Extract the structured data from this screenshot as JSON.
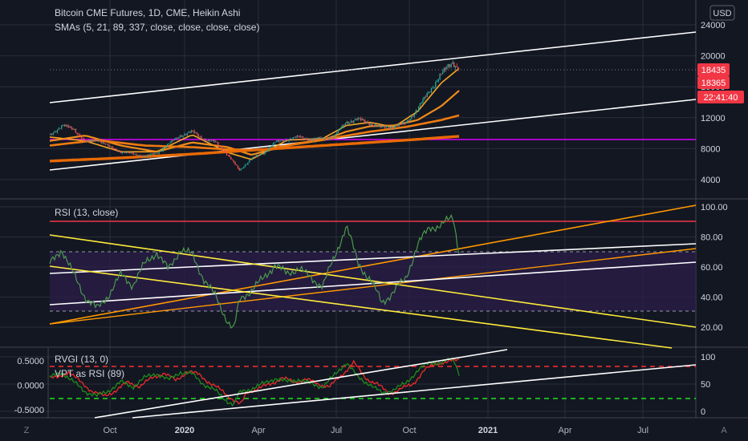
{
  "colors": {
    "background": "#131722",
    "grid": "#2a2e39",
    "divider": "#434651",
    "candle_up": "#26a69a",
    "candle_down": "#ef5350",
    "sma5": "#f5a623",
    "sma21": "#f08c1a",
    "sma89": "#ef7a10",
    "sma337": "#e86a05",
    "magenta_line": "#d500f9",
    "trend_white": "#ffffff",
    "rsi_line": "#4c9a4c",
    "rsi_band_fill": "#2b1d4a",
    "overbought_red": "#f23645",
    "trend_orange": "#ff9800",
    "trend_yellow": "#ffeb3b",
    "rvgi_red": "#ef2a2a",
    "rvgi_green": "#1c8c1c",
    "dashed_red": "#ff2e2e",
    "dashed_green": "#22e222",
    "price_tag_red": "#f23645"
  },
  "header": {
    "title": "Bitcoin CME Futures, 1D, CME, Heikin Ashi",
    "indicator": "SMAs (5, 21, 89, 337, close, close, close, close)",
    "currency_button": "USD"
  },
  "price_tags": {
    "last": "18435",
    "sma": "18365",
    "countdown": "22:41:40"
  },
  "panes": {
    "rsi": {
      "label": "RSI (13, close)"
    },
    "rvgi": {
      "label": "RVGI (13, 0)",
      "label2": "VPT as RSI (89)"
    }
  },
  "footer": {
    "left_icon": "Z",
    "right_icon": "A"
  },
  "chart_data": [
    {
      "type": "candlestick",
      "title": "Bitcoin CME Futures, 1D, CME, Heikin Ashi",
      "series_note": "SMAs (5, 21, 89, 337, close, close, close, close)",
      "x_ticks": [
        "Oct",
        "2020",
        "Apr",
        "Jul",
        "Oct",
        "2021",
        "Apr",
        "Jul"
      ],
      "y_ticks": [
        "24000",
        "20000",
        "16000",
        "12000",
        "8000",
        "4000"
      ],
      "ylim": [
        2000,
        25000
      ],
      "price_path": [
        [
          0,
          9800
        ],
        [
          2,
          11000
        ],
        [
          4,
          10500
        ],
        [
          6,
          8800
        ],
        [
          8,
          9200
        ],
        [
          10,
          8200
        ],
        [
          12,
          7600
        ],
        [
          14,
          7300
        ],
        [
          16,
          7000
        ],
        [
          18,
          7400
        ],
        [
          20,
          8600
        ],
        [
          22,
          9700
        ],
        [
          24,
          10200
        ],
        [
          26,
          9200
        ],
        [
          28,
          8800
        ],
        [
          30,
          7200
        ],
        [
          32,
          5200
        ],
        [
          34,
          6700
        ],
        [
          36,
          7400
        ],
        [
          38,
          8800
        ],
        [
          40,
          9200
        ],
        [
          42,
          9500
        ],
        [
          44,
          9200
        ],
        [
          46,
          9300
        ],
        [
          48,
          9600
        ],
        [
          50,
          11400
        ],
        [
          52,
          11800
        ],
        [
          54,
          11300
        ],
        [
          56,
          10700
        ],
        [
          58,
          10900
        ],
        [
          60,
          11200
        ],
        [
          62,
          13000
        ],
        [
          64,
          15300
        ],
        [
          66,
          17500
        ],
        [
          68,
          19200
        ],
        [
          69,
          18435
        ]
      ],
      "sma_paths": [
        {
          "name": "5",
          "points": [
            [
              0,
              9500
            ],
            [
              6,
              9000
            ],
            [
              12,
              7600
            ],
            [
              18,
              7600
            ],
            [
              24,
              9800
            ],
            [
              30,
              7500
            ],
            [
              34,
              6600
            ],
            [
              40,
              9100
            ],
            [
              46,
              9300
            ],
            [
              50,
              11000
            ],
            [
              54,
              11400
            ],
            [
              58,
              10800
            ],
            [
              62,
              12800
            ],
            [
              66,
              16500
            ],
            [
              69,
              18365
            ]
          ]
        },
        {
          "name": "21",
          "points": [
            [
              0,
              9000
            ],
            [
              6,
              9700
            ],
            [
              12,
              8400
            ],
            [
              18,
              7600
            ],
            [
              24,
              8800
            ],
            [
              30,
              8200
            ],
            [
              34,
              7200
            ],
            [
              40,
              8400
            ],
            [
              46,
              9100
            ],
            [
              50,
              10200
            ],
            [
              54,
              10900
            ],
            [
              58,
              11000
            ],
            [
              62,
              11700
            ],
            [
              66,
              13500
            ],
            [
              69,
              15500
            ]
          ]
        },
        {
          "name": "89",
          "points": [
            [
              0,
              8400
            ],
            [
              8,
              9100
            ],
            [
              16,
              8400
            ],
            [
              24,
              8200
            ],
            [
              30,
              7900
            ],
            [
              36,
              7800
            ],
            [
              42,
              8700
            ],
            [
              48,
              9400
            ],
            [
              54,
              10200
            ],
            [
              60,
              10800
            ],
            [
              66,
              11700
            ],
            [
              69,
              12300
            ]
          ]
        },
        {
          "name": "337",
          "points": [
            [
              0,
              6400
            ],
            [
              12,
              6800
            ],
            [
              24,
              7300
            ],
            [
              36,
              7900
            ],
            [
              48,
              8500
            ],
            [
              60,
              9100
            ],
            [
              69,
              9600
            ]
          ]
        }
      ]
    },
    {
      "type": "line",
      "title": "RSI (13, close)",
      "y_ticks": [
        "100.00",
        "80.00",
        "60.00",
        "40.00",
        "20.00"
      ],
      "ylim": [
        10,
        105
      ],
      "levels": {
        "overbought_red": 90,
        "upper_dashed": 70,
        "lower_dashed": 30
      },
      "rsi_path": [
        [
          0,
          62
        ],
        [
          2,
          72
        ],
        [
          4,
          55
        ],
        [
          6,
          40
        ],
        [
          8,
          32
        ],
        [
          10,
          42
        ],
        [
          12,
          55
        ],
        [
          14,
          48
        ],
        [
          16,
          62
        ],
        [
          18,
          70
        ],
        [
          20,
          58
        ],
        [
          22,
          72
        ],
        [
          24,
          68
        ],
        [
          26,
          52
        ],
        [
          28,
          40
        ],
        [
          30,
          24
        ],
        [
          31,
          18
        ],
        [
          32,
          38
        ],
        [
          34,
          45
        ],
        [
          36,
          52
        ],
        [
          38,
          62
        ],
        [
          40,
          55
        ],
        [
          42,
          60
        ],
        [
          44,
          52
        ],
        [
          46,
          48
        ],
        [
          48,
          66
        ],
        [
          50,
          88
        ],
        [
          52,
          62
        ],
        [
          54,
          52
        ],
        [
          56,
          36
        ],
        [
          58,
          44
        ],
        [
          60,
          52
        ],
        [
          62,
          75
        ],
        [
          64,
          86
        ],
        [
          66,
          88
        ],
        [
          68,
          93
        ],
        [
          69,
          70
        ]
      ]
    },
    {
      "type": "line",
      "title": "RVGI (13, 0)",
      "legend": [
        "RVGI (13, 0)",
        "VPT as RSI (89)"
      ],
      "y_ticks_left": [
        "0.5000",
        "0.0000",
        "-0.5000"
      ],
      "y_ticks_right": [
        "100",
        "50",
        "0"
      ],
      "ylim_left": [
        -0.6,
        0.6
      ],
      "levels": {
        "upper_dashed": 80,
        "lower_dashed": 20
      }
    }
  ]
}
